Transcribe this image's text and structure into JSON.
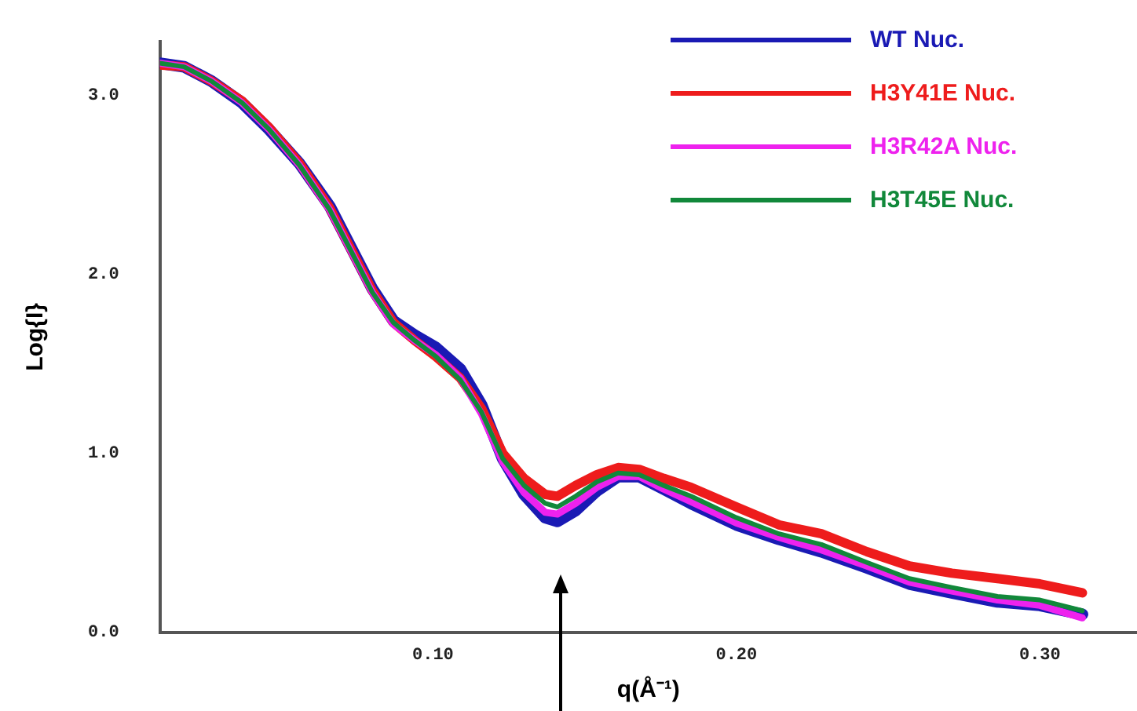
{
  "chart_data": {
    "type": "line",
    "xlabel": "q(Å⁻¹)",
    "ylabel": "Log{I}",
    "x": [
      0.01,
      0.018,
      0.027,
      0.037,
      0.046,
      0.056,
      0.066,
      0.073,
      0.08,
      0.087,
      0.094,
      0.101,
      0.109,
      0.116,
      0.123,
      0.13,
      0.137,
      0.141,
      0.147,
      0.154,
      0.161,
      0.168,
      0.176,
      0.185,
      0.2,
      0.214,
      0.228,
      0.243,
      0.257,
      0.271,
      0.286,
      0.3,
      0.314
    ],
    "series": [
      {
        "name": "WT Nuc.",
        "color": "#1a1ab4",
        "values": [
          3.18,
          3.16,
          3.08,
          2.96,
          2.81,
          2.62,
          2.38,
          2.15,
          1.92,
          1.74,
          1.66,
          1.59,
          1.47,
          1.27,
          0.97,
          0.77,
          0.64,
          0.62,
          0.68,
          0.79,
          0.87,
          0.87,
          0.8,
          0.72,
          0.6,
          0.52,
          0.45,
          0.36,
          0.27,
          0.22,
          0.17,
          0.15,
          0.1
        ]
      },
      {
        "name": "H3Y41E Nuc.",
        "color": "#ee1c1c",
        "values": [
          3.17,
          3.16,
          3.08,
          2.97,
          2.82,
          2.62,
          2.37,
          2.14,
          1.91,
          1.73,
          1.63,
          1.54,
          1.42,
          1.25,
          1.0,
          0.86,
          0.77,
          0.76,
          0.82,
          0.88,
          0.92,
          0.91,
          0.86,
          0.81,
          0.7,
          0.6,
          0.55,
          0.45,
          0.37,
          0.33,
          0.3,
          0.27,
          0.22
        ]
      },
      {
        "name": "H3R42A Nuc.",
        "color": "#ee22ee",
        "values": [
          3.18,
          3.16,
          3.08,
          2.96,
          2.81,
          2.61,
          2.36,
          2.13,
          1.9,
          1.72,
          1.63,
          1.55,
          1.42,
          1.22,
          0.95,
          0.78,
          0.67,
          0.66,
          0.72,
          0.81,
          0.87,
          0.87,
          0.8,
          0.73,
          0.61,
          0.53,
          0.46,
          0.37,
          0.28,
          0.23,
          0.18,
          0.15,
          0.08
        ]
      },
      {
        "name": "H3T45E Nuc.",
        "color": "#11883a",
        "values": [
          3.18,
          3.16,
          3.08,
          2.96,
          2.81,
          2.61,
          2.36,
          2.13,
          1.9,
          1.73,
          1.63,
          1.54,
          1.41,
          1.23,
          0.97,
          0.82,
          0.72,
          0.7,
          0.76,
          0.84,
          0.89,
          0.88,
          0.82,
          0.76,
          0.64,
          0.55,
          0.49,
          0.39,
          0.3,
          0.25,
          0.2,
          0.18,
          0.12
        ]
      }
    ],
    "xlim": [
      0.01,
      0.332
    ],
    "xticks": [
      {
        "value": 0.1,
        "label": "0.10"
      },
      {
        "value": 0.2,
        "label": "0.20"
      },
      {
        "value": 0.3,
        "label": "0.30"
      }
    ],
    "ylim": [
      0,
      3.3
    ],
    "yticks": [
      {
        "value": 0,
        "label": "0.0"
      },
      {
        "value": 1,
        "label": "1.0"
      },
      {
        "value": 2,
        "label": "2.0"
      },
      {
        "value": 3,
        "label": "3.0"
      }
    ],
    "grid": false,
    "legend": "top right",
    "marker": "none",
    "line_style": "solid"
  }
}
